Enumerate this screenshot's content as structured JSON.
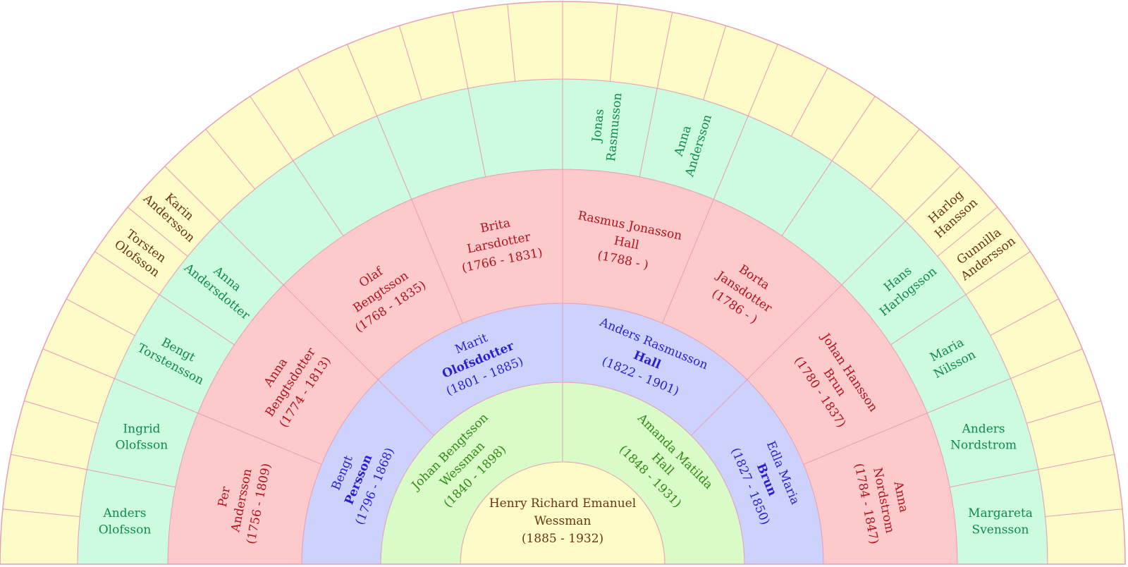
{
  "colors": {
    "center": "#fdfbc8",
    "ring1": "#d8fbc8",
    "ring2": "#cdd2fd",
    "ring3": "#fccaca",
    "ring4": "#cdfbe0",
    "ring5": "#fdfbc8",
    "border": "#e8a0b8",
    "text_center": "#6b3410",
    "text_ring1": "#2f8a12",
    "text_ring2": "#2a1ed2",
    "text_ring3": "#b3121c",
    "text_ring4": "#0f8a4e",
    "text_ring5": "#6b3410"
  },
  "root": {
    "lines": [
      "Henry Richard Emanuel",
      "Wessman",
      "(1885 - 1932)"
    ]
  },
  "ring1": [
    {
      "lines": [
        "Johan Bengtsson",
        "Wessman",
        "(1840 - 1898)"
      ],
      "bold": -1
    },
    {
      "lines": [
        "Amanda Matilda",
        "Hall",
        "(1848 - 1931)"
      ],
      "bold": -1
    }
  ],
  "ring2": [
    {
      "lines": [
        "Bengt",
        "Persson",
        "(1796 - 1868)"
      ],
      "bold": 1
    },
    {
      "lines": [
        "Marit",
        "Olofsdotter",
        "(1801 - 1885)"
      ],
      "bold": 1
    },
    {
      "lines": [
        "Anders Rasmusson",
        "Hall",
        "(1822 - 1901)"
      ],
      "bold": 1
    },
    {
      "lines": [
        "Edla Maria",
        "Brun",
        "(1827 - 1850)"
      ],
      "bold": 1
    }
  ],
  "ring3": [
    {
      "lines": [
        "Per",
        "Andersson",
        "(1756 - 1809)"
      ],
      "bold": -1
    },
    {
      "lines": [
        "Anna",
        "Bengtsdotter",
        "(1774 - 1813)"
      ],
      "bold": -1
    },
    {
      "lines": [
        "Olaf",
        "Bengtsson",
        "(1768 - 1835)"
      ],
      "bold": -1
    },
    {
      "lines": [
        "Brita",
        "Larsdotter",
        "(1766 - 1831)"
      ],
      "bold": -1
    },
    {
      "lines": [
        "Rasmus Jonasson",
        "Hall",
        "(1788 - )"
      ],
      "bold": -1
    },
    {
      "lines": [
        "Borta",
        "Jansdotter",
        "(1786 - )"
      ],
      "bold": -1
    },
    {
      "lines": [
        "Johan Hansson",
        "Brun",
        "(1780 - 1837)"
      ],
      "bold": -1
    },
    {
      "lines": [
        "Anna",
        "Nordstrom",
        "(1784 - 1847)"
      ],
      "bold": -1
    }
  ],
  "ring4": [
    {
      "lines": [
        "Anders",
        "Olofsson"
      ]
    },
    {
      "lines": [
        "Ingrid",
        "Olofsson"
      ]
    },
    {
      "lines": [
        "Bengt",
        "Torstensson"
      ]
    },
    {
      "lines": [
        "Anna",
        "Andersdotter"
      ]
    },
    {
      "lines": []
    },
    {
      "lines": []
    },
    {
      "lines": []
    },
    {
      "lines": []
    },
    {
      "lines": [
        "Jonas",
        "Rasmusson"
      ]
    },
    {
      "lines": [
        "Anna",
        "Andersson"
      ]
    },
    {
      "lines": []
    },
    {
      "lines": []
    },
    {
      "lines": [
        "Hans",
        "Harlogsson"
      ]
    },
    {
      "lines": [
        "Maria",
        "Nilsson"
      ]
    },
    {
      "lines": [
        "Anders",
        "Nordstrom"
      ]
    },
    {
      "lines": [
        "Margareta",
        "Svensson"
      ]
    }
  ],
  "ring5": [
    {
      "lines": []
    },
    {
      "lines": []
    },
    {
      "lines": []
    },
    {
      "lines": []
    },
    {
      "lines": []
    },
    {
      "lines": []
    },
    {
      "lines": [
        "Torsten",
        "Olofsson"
      ]
    },
    {
      "lines": [
        "Karin",
        "Andersson"
      ]
    },
    {
      "lines": []
    },
    {
      "lines": []
    },
    {
      "lines": []
    },
    {
      "lines": []
    },
    {
      "lines": []
    },
    {
      "lines": []
    },
    {
      "lines": []
    },
    {
      "lines": []
    },
    {
      "lines": []
    },
    {
      "lines": []
    },
    {
      "lines": []
    },
    {
      "lines": []
    },
    {
      "lines": []
    },
    {
      "lines": []
    },
    {
      "lines": []
    },
    {
      "lines": []
    },
    {
      "lines": [
        "Harlog",
        "Hansson"
      ]
    },
    {
      "lines": [
        "Gunnilla",
        "Andersson"
      ]
    },
    {
      "lines": []
    },
    {
      "lines": []
    },
    {
      "lines": []
    },
    {
      "lines": []
    },
    {
      "lines": []
    },
    {
      "lines": []
    }
  ]
}
